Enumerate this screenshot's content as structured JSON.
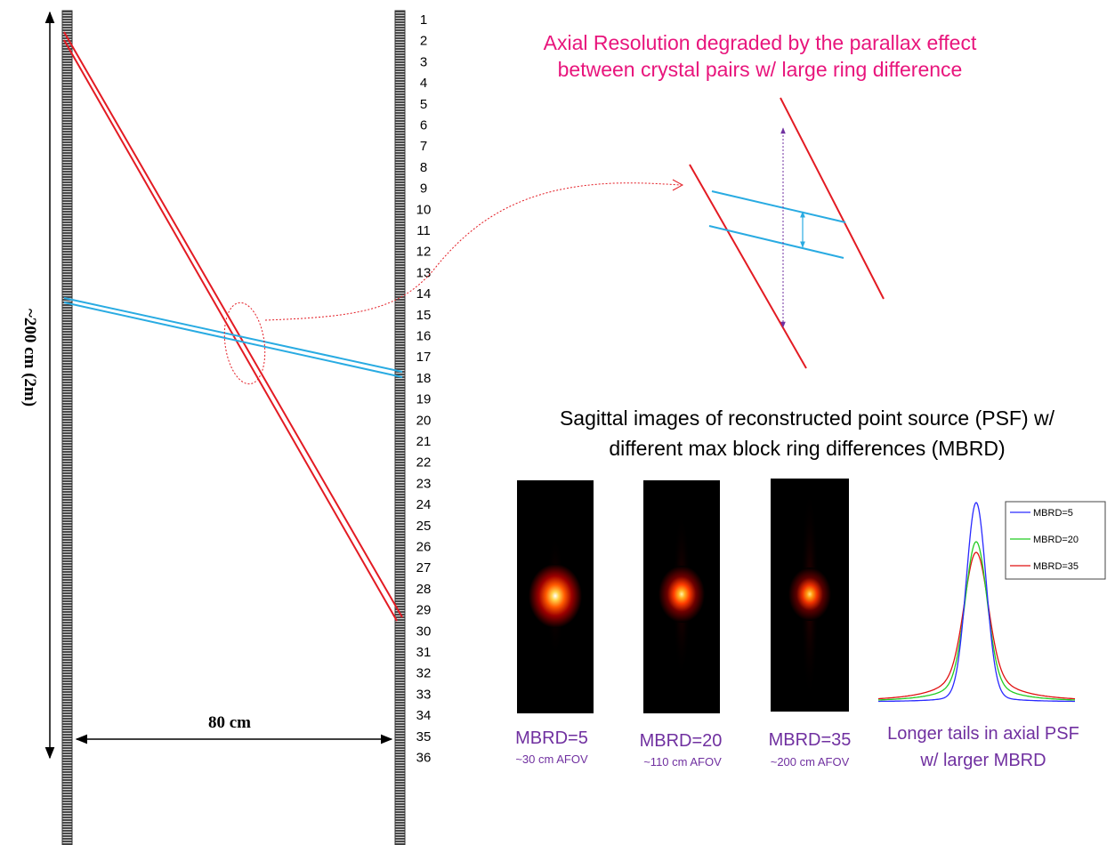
{
  "colors": {
    "lor_red": "#e31b23",
    "lor_blue": "#29abe2",
    "title_pink": "#e8157c",
    "purple": "#7030a0",
    "detector_dark": "#3a3a3a",
    "series_blue": "#2a2aff",
    "series_green": "#22cc22",
    "series_red": "#e01010"
  },
  "scanner": {
    "height_label": "~200 cm (2m)",
    "width_label": "80 cm",
    "ring_numbers": [
      "1",
      "2",
      "3",
      "4",
      "5",
      "6",
      "7",
      "8",
      "9",
      "10",
      "11",
      "12",
      "13",
      "14",
      "15",
      "16",
      "17",
      "18",
      "19",
      "20",
      "21",
      "22",
      "23",
      "24",
      "25",
      "26",
      "27",
      "28",
      "29",
      "30",
      "31",
      "32",
      "33",
      "34",
      "35",
      "36"
    ]
  },
  "parallax": {
    "title_line1": "Axial Resolution degraded by the parallax effect",
    "title_line2": "between crystal pairs w/ large ring difference"
  },
  "sagittal": {
    "title_line1": "Sagittal images of reconstructed point source (PSF) w/",
    "title_line2": "different max block ring differences (MBRD)",
    "images": [
      {
        "label": "MBRD=5",
        "sublabel": "~30 cm AFOV"
      },
      {
        "label": "MBRD=20",
        "sublabel": "~110 cm AFOV"
      },
      {
        "label": "MBRD=35",
        "sublabel": "~200 cm AFOV"
      }
    ]
  },
  "profile_plot": {
    "caption_line1": "Longer tails in axial PSF",
    "caption_line2": "w/ larger MBRD",
    "legend": [
      "MBRD=5",
      "MBRD=20",
      "MBRD=35"
    ]
  }
}
